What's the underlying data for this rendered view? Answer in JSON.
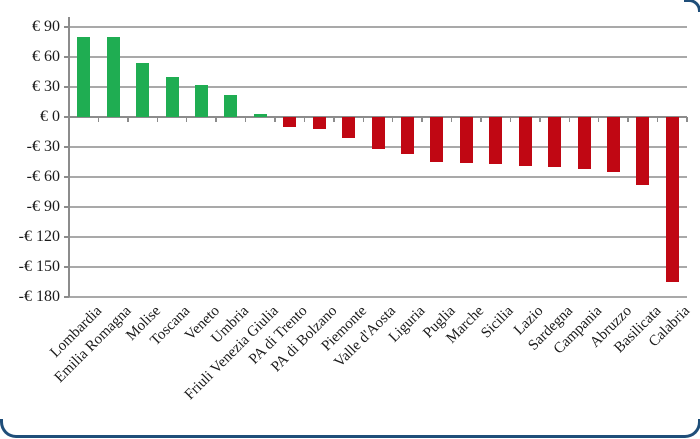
{
  "chart_data": {
    "type": "bar",
    "title": "",
    "xlabel": "",
    "ylabel": "",
    "currency_prefix": "€",
    "categories": [
      "Lombardia",
      "Emilia Romagna",
      "Molise",
      "Toscana",
      "Veneto",
      "Umbria",
      "Friuli Venezia Giulia",
      "PA di Trento",
      "PA di Bolzano",
      "Piemonte",
      "Valle d'Aosta",
      "Liguria",
      "Puglia",
      "Marche",
      "Sicilia",
      "Lazio",
      "Sardegna",
      "Campania",
      "Abruzzo",
      "Basilicata",
      "Calabria"
    ],
    "values": [
      80,
      80,
      54,
      40,
      32,
      22,
      3,
      -10,
      -12,
      -21,
      -32,
      -37,
      -45,
      -46,
      -47,
      -49,
      -50,
      -52,
      -55,
      -68,
      -165
    ],
    "y_ticks": [
      {
        "value": 90,
        "label": "€ 90"
      },
      {
        "value": 60,
        "label": "€ 60"
      },
      {
        "value": 30,
        "label": "€ 30"
      },
      {
        "value": 0,
        "label": "€ 0"
      },
      {
        "value": -30,
        "label": "-€ 30"
      },
      {
        "value": -60,
        "label": "-€ 60"
      },
      {
        "value": -90,
        "label": "-€ 90"
      },
      {
        "value": -120,
        "label": "-€ 120"
      },
      {
        "value": -150,
        "label": "-€ 150"
      },
      {
        "value": -180,
        "label": "-€ 180"
      }
    ],
    "ylim": [
      -180,
      100
    ],
    "grid": true,
    "legend": false,
    "bar_color_positive": "#1FAD52",
    "bar_color_negative": "#C00713",
    "gridline_color": "#A9A9A9",
    "axis_color": "#8C8C8C",
    "text_color": "#1A1A1A",
    "frame_color": "#1F4E79"
  }
}
